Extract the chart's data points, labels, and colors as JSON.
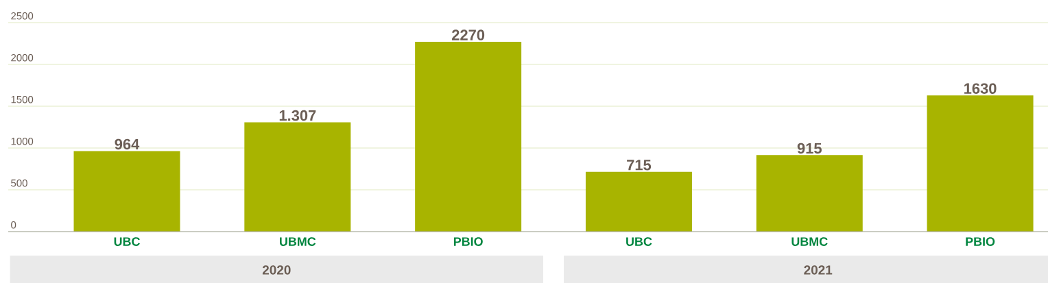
{
  "chart_data": {
    "type": "bar",
    "categories": [
      "UBC",
      "UBMC",
      "PBIO",
      "UBC",
      "UBMC",
      "PBIO"
    ],
    "values": [
      964,
      1307,
      2270,
      715,
      915,
      1630
    ],
    "value_labels": [
      "964",
      "1.307",
      "2270",
      "715",
      "915",
      "1630"
    ],
    "color": "#a8b400",
    "ylim": [
      0,
      2500
    ],
    "yticks": [
      0,
      500,
      1000,
      1500,
      2000,
      2500
    ],
    "grid": "y",
    "annotations": [
      "2020",
      "2021"
    ]
  }
}
